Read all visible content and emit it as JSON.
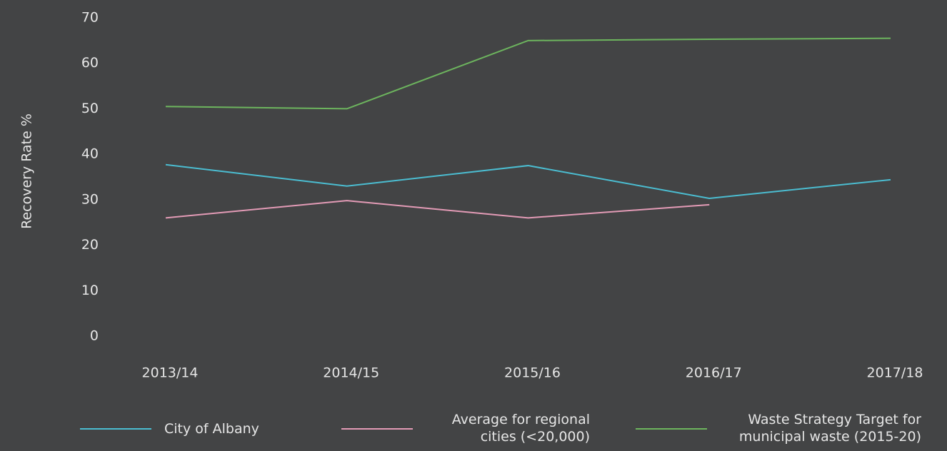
{
  "chart_data": {
    "type": "line",
    "ylabel": "Recovery Rate %",
    "categories": [
      "2013/14",
      "2014/15",
      "2015/16",
      "2016/17",
      "2017/18"
    ],
    "series": [
      {
        "name": "City of Albany",
        "color": "#4bbdd1",
        "values": [
          37.7,
          33,
          37.5,
          30.3,
          34.4
        ]
      },
      {
        "name": "Average for regional cities (<20,000)",
        "color": "#e39bb6",
        "values": [
          26,
          29.8,
          26,
          28.9,
          null
        ]
      },
      {
        "name": "Waste Strategy Target for municipal waste (2015-20)",
        "color": "#6db55e",
        "values": [
          50.5,
          50,
          65,
          65.3,
          65.5
        ]
      }
    ],
    "ylim": [
      0,
      70
    ],
    "yticks": [
      0,
      10,
      20,
      30,
      40,
      50,
      60,
      70
    ],
    "grid": false,
    "legend": "bottom"
  }
}
